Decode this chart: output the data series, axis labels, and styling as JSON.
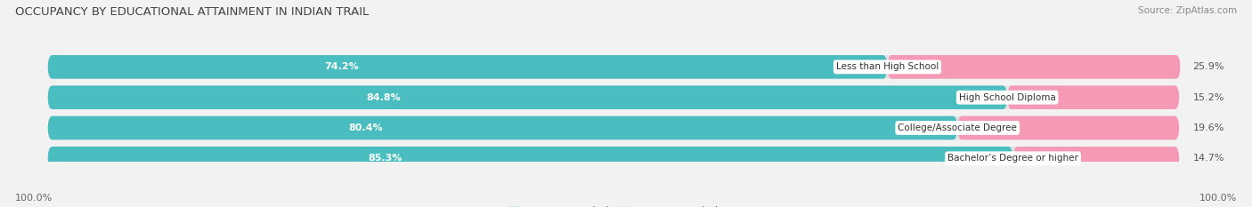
{
  "title": "OCCUPANCY BY EDUCATIONAL ATTAINMENT IN INDIAN TRAIL",
  "source": "Source: ZipAtlas.com",
  "categories": [
    "Less than High School",
    "High School Diploma",
    "College/Associate Degree",
    "Bachelor’s Degree or higher"
  ],
  "owner_values": [
    74.2,
    84.8,
    80.4,
    85.3
  ],
  "renter_values": [
    25.9,
    15.2,
    19.6,
    14.7
  ],
  "owner_color": "#49bdbf",
  "renter_color": "#f599b4",
  "background_color": "#f2f2f2",
  "bar_bg_color": "#e2e2e2",
  "title_fontsize": 9.5,
  "label_fontsize": 8.0,
  "tick_fontsize": 8.0,
  "legend_fontsize": 8.5,
  "source_fontsize": 7.5,
  "axis_label_left": "100.0%",
  "axis_label_right": "100.0%",
  "bar_height": 0.62,
  "bar_gap": 0.18
}
